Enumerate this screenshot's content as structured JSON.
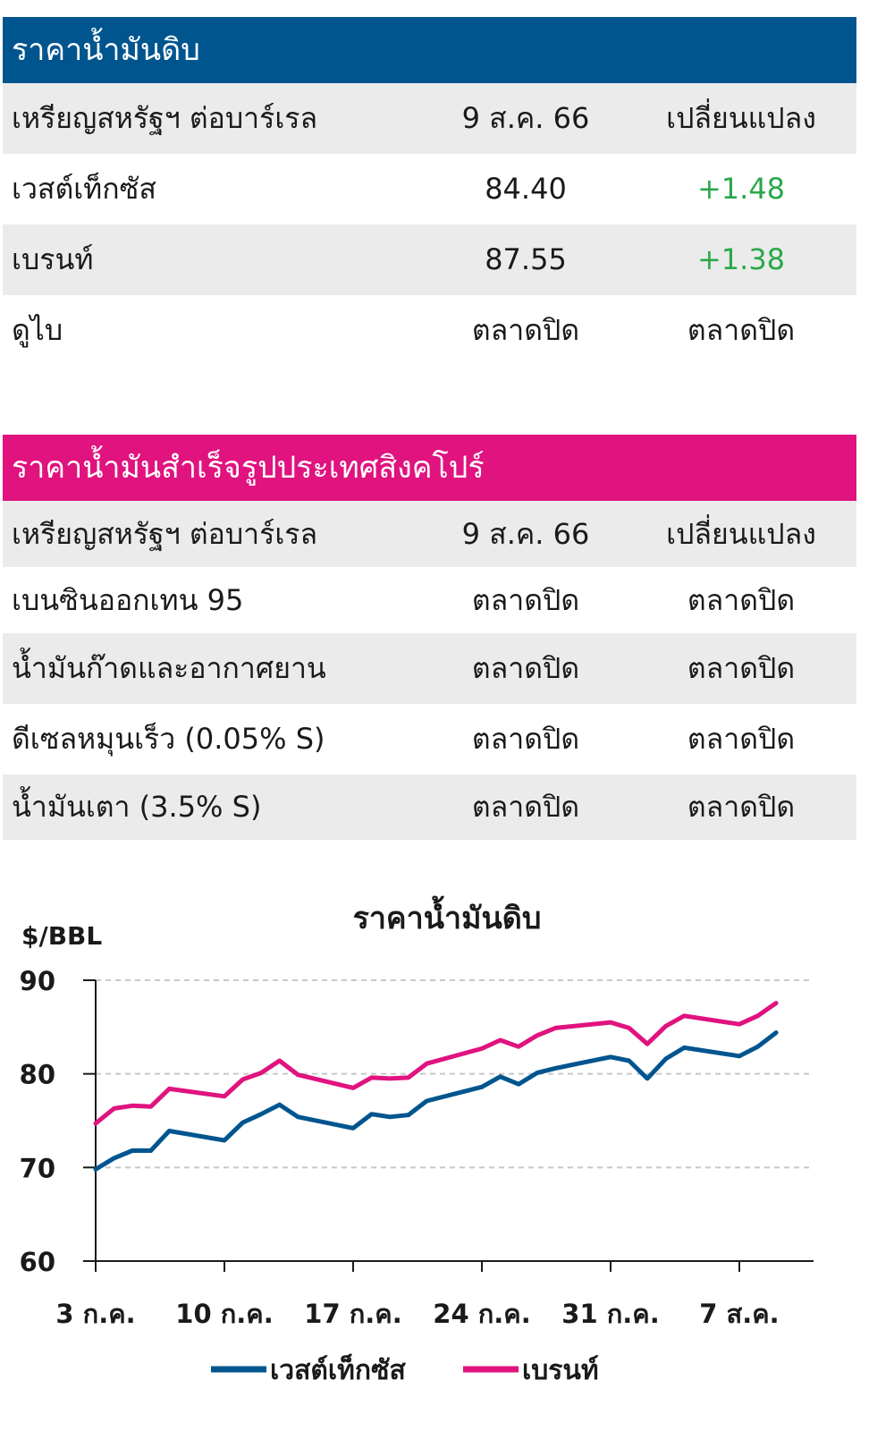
{
  "crude": {
    "title": "ราคาน้ำมันดิบ",
    "header": {
      "label": "เหรียญสหรัฐฯ ต่อบาร์เรล",
      "date": "9 ส.ค. 66",
      "change": "เปลี่ยนแปลง"
    },
    "rows": [
      {
        "name": "เวสต์เท็กซัส",
        "price": "84.40",
        "change": "+1.48"
      },
      {
        "name": "เบรนท์",
        "price": "87.55",
        "change": "+1.38"
      },
      {
        "name": "ดูไบ",
        "price": "ตลาดปิด",
        "change": "ตลาดปิด"
      }
    ],
    "color": "#00558f"
  },
  "singapore": {
    "title": "ราคาน้ำมันสำเร็จรูปประเทศสิงคโปร์",
    "header": {
      "label": "เหรียญสหรัฐฯ ต่อบาร์เรล",
      "date": "9 ส.ค. 66",
      "change": "เปลี่ยนแปลง"
    },
    "rows": [
      {
        "name": "เบนซินออกเทน 95",
        "price": "ตลาดปิด",
        "change": "ตลาดปิด"
      },
      {
        "name": "น้ำมันก๊าดและอากาศยาน",
        "price": "ตลาดปิด",
        "change": "ตลาดปิด"
      },
      {
        "name": "ดีเซลหมุนเร็ว (0.05% S)",
        "price": "ตลาดปิด",
        "change": "ตลาดปิด"
      },
      {
        "name": "น้ำมันเตา (3.5% S)",
        "price": "ตลาดปิด",
        "change": "ตลาดปิด"
      }
    ],
    "color": "#e0137f"
  },
  "chart_data": {
    "type": "line",
    "title": "ราคาน้ำมันดิบ",
    "ylabel": "$/BBL",
    "xlabel": "",
    "ylim": [
      60,
      90
    ],
    "yticks": [
      60,
      70,
      80,
      90
    ],
    "xticks": [
      "3 ก.ค.",
      "10 ก.ค.",
      "17 ก.ค.",
      "24 ก.ค.",
      "31 ก.ค.",
      "7 ส.ค."
    ],
    "grid": true,
    "legend": "bottom",
    "x": [
      "2023-07-03",
      "2023-07-04",
      "2023-07-05",
      "2023-07-06",
      "2023-07-07",
      "2023-07-10",
      "2023-07-11",
      "2023-07-12",
      "2023-07-13",
      "2023-07-14",
      "2023-07-17",
      "2023-07-18",
      "2023-07-19",
      "2023-07-20",
      "2023-07-21",
      "2023-07-24",
      "2023-07-25",
      "2023-07-26",
      "2023-07-27",
      "2023-07-28",
      "2023-07-31",
      "2023-08-01",
      "2023-08-02",
      "2023-08-03",
      "2023-08-04",
      "2023-08-07",
      "2023-08-08",
      "2023-08-09"
    ],
    "series": [
      {
        "name": "เวสต์เท็กซัส",
        "color": "#00558f",
        "values": [
          69.8,
          71.0,
          71.8,
          71.8,
          73.9,
          72.9,
          74.8,
          75.7,
          76.7,
          75.4,
          74.2,
          75.7,
          75.4,
          75.6,
          77.1,
          78.6,
          79.7,
          78.9,
          80.1,
          80.6,
          81.8,
          81.4,
          79.5,
          81.6,
          82.8,
          81.9,
          82.9,
          84.4
        ]
      },
      {
        "name": "เบรนท์",
        "color": "#e0137f",
        "values": [
          74.7,
          76.3,
          76.6,
          76.5,
          78.4,
          77.6,
          79.4,
          80.1,
          81.4,
          79.9,
          78.5,
          79.6,
          79.5,
          79.6,
          81.1,
          82.7,
          83.6,
          82.9,
          84.1,
          84.9,
          85.5,
          84.9,
          83.2,
          85.1,
          86.2,
          85.3,
          86.2,
          87.55
        ]
      }
    ]
  }
}
